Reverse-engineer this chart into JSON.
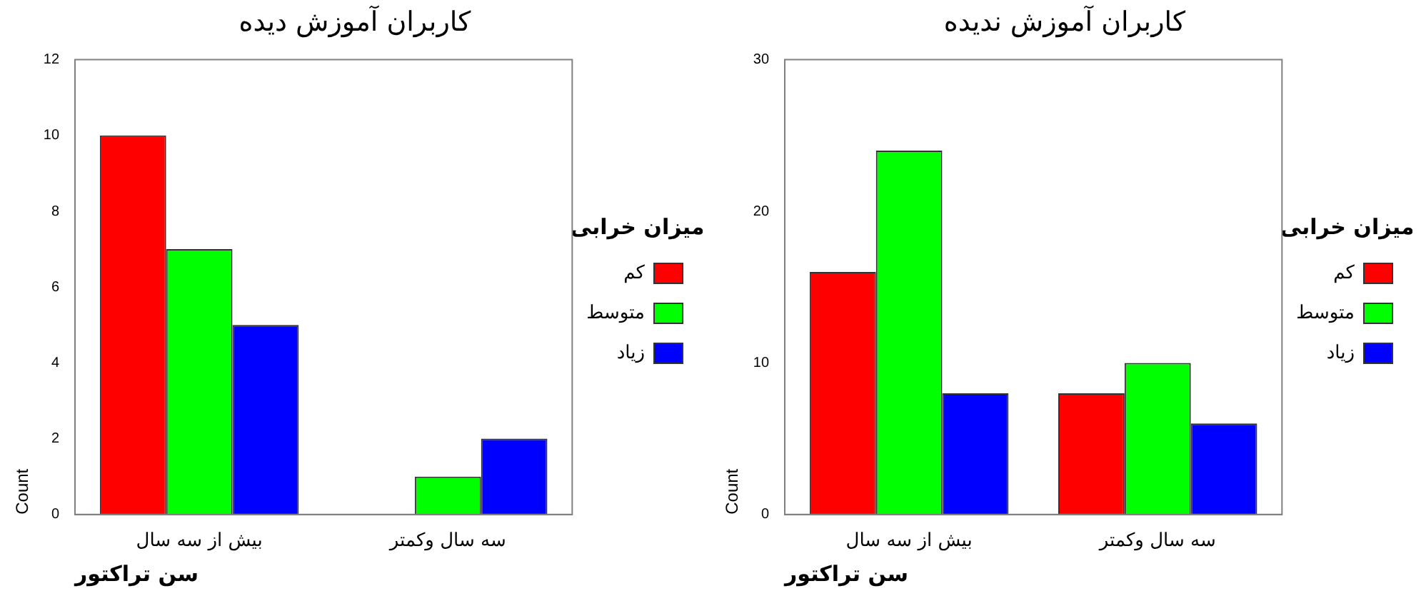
{
  "chart_data": [
    {
      "type": "bar",
      "title": "کاربران آموزش دیده",
      "xlabel": "سن تراکتور",
      "ylabel": "Count",
      "legend_title": "میزان خرابی",
      "categories": [
        "بیش از سه سال",
        "سه سال وکمتر"
      ],
      "series": [
        {
          "name": "کم",
          "color": "#ff0000",
          "values": [
            10,
            0
          ]
        },
        {
          "name": "متوسط",
          "color": "#00ff00",
          "values": [
            7,
            1
          ]
        },
        {
          "name": "زیاد",
          "color": "#0000ff",
          "values": [
            5,
            2
          ]
        }
      ],
      "ylim": [
        0,
        12
      ],
      "yticks": [
        0,
        2,
        4,
        6,
        8,
        10,
        12
      ],
      "grid": false,
      "legend": "right"
    },
    {
      "type": "bar",
      "title": "کاربران آموزش ندیده",
      "xlabel": "سن تراکتور",
      "ylabel": "Count",
      "legend_title": "میزان خرابی",
      "categories": [
        "بیش از سه سال",
        "سه سال وکمتر"
      ],
      "series": [
        {
          "name": "کم",
          "color": "#ff0000",
          "values": [
            16,
            8
          ]
        },
        {
          "name": "متوسط",
          "color": "#00ff00",
          "values": [
            24,
            10
          ]
        },
        {
          "name": "زیاد",
          "color": "#0000ff",
          "values": [
            8,
            6
          ]
        }
      ],
      "ylim": [
        0,
        30
      ],
      "yticks": [
        0,
        10,
        20,
        30
      ],
      "grid": false,
      "legend": "right"
    }
  ]
}
